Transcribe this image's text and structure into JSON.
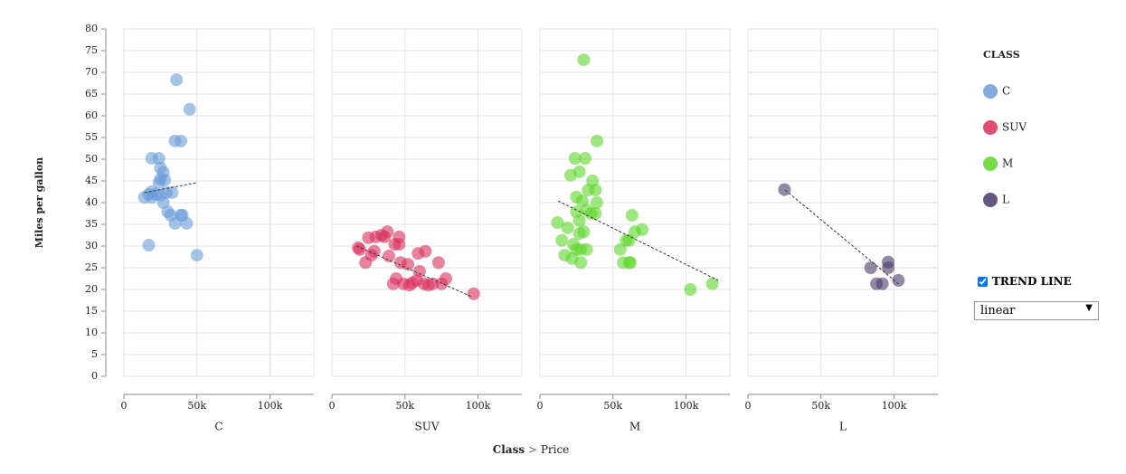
{
  "chart_data": [
    {
      "type": "scatter",
      "x_label": "C",
      "xlim": [
        0,
        130000
      ],
      "ylim": [
        0,
        80
      ],
      "xticks": [
        0,
        {
          "value": 50000,
          "label": "50k"
        },
        {
          "value": 100000,
          "label": "100k"
        }
      ],
      "yticks": [
        0,
        5,
        10,
        15,
        20,
        25,
        30,
        35,
        40,
        45,
        50,
        55,
        60,
        65,
        70,
        75,
        80
      ],
      "grid": true,
      "series": [
        {
          "name": "C",
          "color": "#6b9bd8",
          "x": [
            36000,
            45000,
            35000,
            39000,
            19000,
            24000,
            25000,
            27000,
            25000,
            24000,
            28000,
            19000,
            17000,
            14000,
            19000,
            22000,
            25000,
            29000,
            33000,
            27000,
            30000,
            32000,
            39000,
            40000,
            35000,
            43000,
            17000,
            50000
          ],
          "values": [
            68.3,
            61.5,
            54.2,
            54.2,
            50.2,
            50.2,
            48,
            47,
            45.4,
            44.6,
            45.2,
            42.5,
            41.9,
            41.2,
            41.2,
            41.9,
            41.7,
            42.3,
            42.3,
            40,
            37.9,
            37.1,
            37.1,
            37.1,
            35.2,
            35.2,
            30.2,
            27.9
          ]
        }
      ],
      "trend": {
        "x": [
          14000,
          50000
        ],
        "y": [
          42.3,
          44.6
        ]
      }
    },
    {
      "type": "scatter",
      "x_label": "SUV",
      "xlim": [
        0,
        130000
      ],
      "ylim": [
        0,
        80
      ],
      "xticks": [
        0,
        {
          "value": 50000,
          "label": "50k"
        },
        {
          "value": 100000,
          "label": "100k"
        }
      ],
      "yticks": [
        0,
        5,
        10,
        15,
        20,
        25,
        30,
        35,
        40,
        45,
        50,
        55,
        60,
        65,
        70,
        75,
        80
      ],
      "grid": true,
      "series": [
        {
          "name": "SUV",
          "color": "#d9305c",
          "x": [
            18000,
            19000,
            23000,
            25000,
            29000,
            27000,
            30000,
            34000,
            36000,
            38000,
            39000,
            43000,
            46000,
            46000,
            47000,
            52000,
            42000,
            44000,
            49000,
            53000,
            55000,
            58000,
            59000,
            60000,
            63000,
            64000,
            66000,
            69000,
            73000,
            75000,
            78000,
            97000
          ],
          "values": [
            29.6,
            29.2,
            26.2,
            31.9,
            28.8,
            27.9,
            32.1,
            32.5,
            32.1,
            33.3,
            27.7,
            30.4,
            32.1,
            30.4,
            26.2,
            25.8,
            21.3,
            22.5,
            21.3,
            21,
            21.5,
            22.1,
            28.3,
            24.2,
            21.3,
            28.8,
            21,
            21.3,
            26.2,
            21.3,
            22.5,
            19
          ]
        }
      ],
      "trend": {
        "x": [
          17000,
          96000
        ],
        "y": [
          30,
          18.3
        ]
      }
    },
    {
      "type": "scatter",
      "x_label": "M",
      "xlim": [
        0,
        130000
      ],
      "ylim": [
        0,
        80
      ],
      "xticks": [
        0,
        {
          "value": 50000,
          "label": "50k"
        },
        {
          "value": 100000,
          "label": "100k"
        }
      ],
      "yticks": [
        0,
        5,
        10,
        15,
        20,
        25,
        30,
        35,
        40,
        45,
        50,
        55,
        60,
        65,
        70,
        75,
        80
      ],
      "grid": true,
      "series": [
        {
          "name": "M",
          "color": "#5dd52a",
          "x": [
            30000,
            39000,
            24000,
            31000,
            21000,
            27000,
            36000,
            33000,
            38000,
            25000,
            29000,
            39000,
            12000,
            19000,
            25000,
            32000,
            35000,
            27000,
            38000,
            27000,
            30000,
            15000,
            23000,
            25000,
            28000,
            32000,
            17000,
            22000,
            28000,
            55000,
            59000,
            61000,
            63000,
            65000,
            70000,
            57000,
            61000,
            62000,
            103000,
            118000
          ],
          "values": [
            72.9,
            54.2,
            50.2,
            50.2,
            46.3,
            47.1,
            45,
            42.9,
            42.9,
            41.3,
            40.4,
            40,
            35.4,
            34.2,
            37.9,
            38.3,
            37.5,
            35.8,
            37.5,
            32.9,
            33.3,
            31.3,
            30.4,
            29.2,
            29.2,
            29.2,
            27.9,
            27.1,
            26.2,
            29.2,
            31.3,
            31.3,
            37.1,
            33.3,
            33.8,
            26.2,
            26.2,
            26.2,
            20,
            21.3
          ]
        }
      ],
      "trend": {
        "x": [
          12400,
          122000
        ],
        "y": [
          40.4,
          22.1
        ]
      }
    },
    {
      "type": "scatter",
      "x_label": "L",
      "xlim": [
        0,
        130000
      ],
      "ylim": [
        0,
        80
      ],
      "xticks": [
        0,
        {
          "value": 50000,
          "label": "50k"
        },
        {
          "value": 100000,
          "label": "100k"
        }
      ],
      "yticks": [
        0,
        5,
        10,
        15,
        20,
        25,
        30,
        35,
        40,
        45,
        50,
        55,
        60,
        65,
        70,
        75,
        80
      ],
      "grid": true,
      "series": [
        {
          "name": "L",
          "color": "#4a3a6b",
          "x": [
            25000,
            84000,
            96000,
            96000,
            88000,
            92000,
            103000
          ],
          "values": [
            43,
            25,
            26.3,
            25,
            21.3,
            21.3,
            22.1
          ]
        }
      ],
      "trend": {
        "x": [
          25500,
          103000
        ],
        "y": [
          42.9,
          21.3
        ]
      }
    }
  ],
  "y_label": "Miles per gallon",
  "x_title": {
    "field": "Class",
    "separator": ">",
    "subfield": "Price"
  },
  "legend": {
    "title": "CLASS"
  },
  "controls": {
    "trend_label": "TREND LINE",
    "trend_checked": true,
    "method": "linear"
  }
}
